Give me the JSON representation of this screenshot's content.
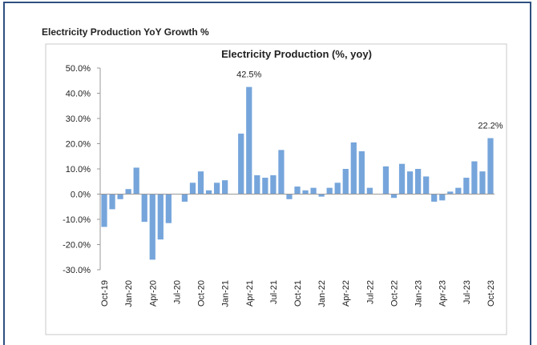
{
  "header": {
    "title": "Electricity Production YoY Growth %"
  },
  "chart_data": {
    "type": "bar",
    "title": "Electricity Production (%, yoy)",
    "categories": [
      "Oct-19",
      null,
      null,
      "Jan-20",
      null,
      null,
      "Apr-20",
      null,
      null,
      "Jul-20",
      null,
      null,
      "Oct-20",
      null,
      null,
      "Jan-21",
      null,
      null,
      "Apr-21",
      null,
      null,
      "Jul-21",
      null,
      null,
      "Oct-21",
      null,
      null,
      "Jan-22",
      null,
      null,
      "Apr-22",
      null,
      null,
      "Jul-22",
      null,
      null,
      "Oct-22",
      null,
      null,
      "Jan-23",
      null,
      null,
      "Apr-23",
      null,
      null,
      "Jul-23",
      null,
      null,
      "Oct-23"
    ],
    "values": [
      -13,
      -6,
      -2,
      2,
      10.5,
      -11,
      -26,
      -18,
      -11.5,
      0,
      -3,
      4.5,
      9,
      1.5,
      4.5,
      5.5,
      0,
      24,
      42.5,
      7.5,
      6.5,
      7.5,
      17.5,
      -2,
      3,
      1.5,
      2.5,
      -1,
      2.5,
      4.5,
      10,
      20.5,
      17,
      2.5,
      0,
      11,
      -1.5,
      12,
      9,
      10,
      7,
      -3,
      -2.5,
      1,
      2.5,
      6.5,
      13,
      9,
      22.2
    ],
    "value_labels": [
      null,
      null,
      null,
      null,
      null,
      null,
      null,
      null,
      null,
      null,
      null,
      null,
      null,
      null,
      null,
      null,
      null,
      null,
      "42.5%",
      null,
      null,
      null,
      null,
      null,
      null,
      null,
      null,
      null,
      null,
      null,
      null,
      null,
      null,
      null,
      null,
      null,
      null,
      null,
      null,
      null,
      null,
      null,
      null,
      null,
      null,
      null,
      null,
      null,
      "22.2%"
    ],
    "color": "#76a5db",
    "ylim": [
      -30,
      50
    ],
    "yticks": [
      {
        "value": -30,
        "label": "-30.0%"
      },
      {
        "value": -20,
        "label": "-20.0%"
      },
      {
        "value": -10,
        "label": "-10.0%"
      },
      {
        "value": 0,
        "label": "0.0%"
      },
      {
        "value": 10,
        "label": "10.0%"
      },
      {
        "value": 20,
        "label": "20.0%"
      },
      {
        "value": 30,
        "label": "30.0%"
      },
      {
        "value": 40,
        "label": "40.0%"
      },
      {
        "value": 50,
        "label": "50.0%"
      }
    ],
    "grid": false
  }
}
